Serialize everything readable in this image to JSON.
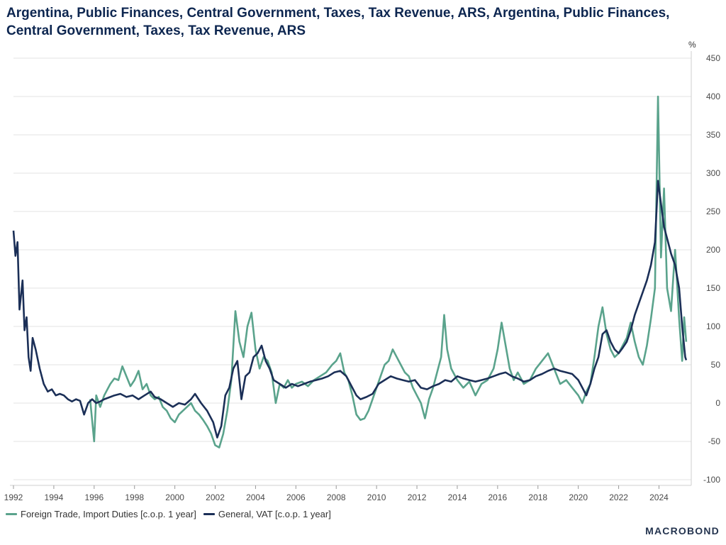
{
  "page": {
    "title": "Argentina, Public Finances, Central Government, Taxes, Tax Revenue, ARS, Argentina, Public Finances, Central Government, Taxes, Tax Revenue, ARS",
    "brand": "MACROBOND"
  },
  "colors": {
    "import_duties": "#5aa38c",
    "vat": "#1b2f57",
    "grid": "#e3e3e3",
    "axis": "#cfcfcf"
  },
  "chart_data": {
    "type": "line",
    "title": "Argentina, Public Finances, Central Government, Taxes, Tax Revenue, ARS, Argentina, Public Finances, Central Government, Taxes, Tax Revenue, ARS",
    "ylabel": "%",
    "xlim": [
      1992,
      2025.6
    ],
    "ylim": [
      -100,
      450
    ],
    "x_ticks": [
      "1992",
      "1994",
      "1996",
      "1998",
      "2000",
      "2002",
      "2004",
      "2006",
      "2008",
      "2010",
      "2012",
      "2014",
      "2016",
      "2018",
      "2020",
      "2022",
      "2024"
    ],
    "y_ticks": [
      "450",
      "400",
      "350",
      "300",
      "250",
      "200",
      "150",
      "100",
      "50",
      "0",
      "-50",
      "-100"
    ],
    "grid": true,
    "legend_position": "bottom-left",
    "series": [
      {
        "name": "Foreign Trade, Import Duties [c.o.p. 1 year]",
        "color": "#5aa38c",
        "points": [
          [
            1995.8,
            5
          ],
          [
            1996.0,
            -50
          ],
          [
            1996.1,
            10
          ],
          [
            1996.3,
            -5
          ],
          [
            1996.5,
            10
          ],
          [
            1996.8,
            25
          ],
          [
            1997.0,
            32
          ],
          [
            1997.2,
            30
          ],
          [
            1997.4,
            48
          ],
          [
            1997.6,
            35
          ],
          [
            1997.8,
            22
          ],
          [
            1998.0,
            30
          ],
          [
            1998.2,
            42
          ],
          [
            1998.4,
            18
          ],
          [
            1998.6,
            25
          ],
          [
            1998.8,
            10
          ],
          [
            1999.0,
            5
          ],
          [
            1999.2,
            8
          ],
          [
            1999.4,
            -5
          ],
          [
            1999.6,
            -10
          ],
          [
            1999.8,
            -20
          ],
          [
            2000.0,
            -25
          ],
          [
            2000.2,
            -15
          ],
          [
            2000.4,
            -10
          ],
          [
            2000.6,
            -5
          ],
          [
            2000.8,
            0
          ],
          [
            2001.0,
            -10
          ],
          [
            2001.2,
            -15
          ],
          [
            2001.4,
            -22
          ],
          [
            2001.6,
            -30
          ],
          [
            2001.8,
            -40
          ],
          [
            2002.0,
            -55
          ],
          [
            2002.2,
            -58
          ],
          [
            2002.4,
            -40
          ],
          [
            2002.6,
            -10
          ],
          [
            2002.8,
            30
          ],
          [
            2003.0,
            120
          ],
          [
            2003.2,
            80
          ],
          [
            2003.4,
            60
          ],
          [
            2003.6,
            100
          ],
          [
            2003.8,
            118
          ],
          [
            2004.0,
            70
          ],
          [
            2004.2,
            45
          ],
          [
            2004.4,
            60
          ],
          [
            2004.6,
            55
          ],
          [
            2004.8,
            40
          ],
          [
            2005.0,
            0
          ],
          [
            2005.2,
            25
          ],
          [
            2005.4,
            20
          ],
          [
            2005.6,
            30
          ],
          [
            2005.8,
            20
          ],
          [
            2006.0,
            25
          ],
          [
            2006.3,
            28
          ],
          [
            2006.6,
            22
          ],
          [
            2006.9,
            30
          ],
          [
            2007.2,
            35
          ],
          [
            2007.5,
            40
          ],
          [
            2007.8,
            50
          ],
          [
            2008.0,
            55
          ],
          [
            2008.2,
            65
          ],
          [
            2008.4,
            40
          ],
          [
            2008.6,
            30
          ],
          [
            2008.8,
            10
          ],
          [
            2009.0,
            -15
          ],
          [
            2009.2,
            -22
          ],
          [
            2009.4,
            -20
          ],
          [
            2009.6,
            -10
          ],
          [
            2009.8,
            5
          ],
          [
            2010.0,
            20
          ],
          [
            2010.2,
            35
          ],
          [
            2010.4,
            50
          ],
          [
            2010.6,
            55
          ],
          [
            2010.8,
            70
          ],
          [
            2011.0,
            60
          ],
          [
            2011.2,
            50
          ],
          [
            2011.4,
            40
          ],
          [
            2011.6,
            35
          ],
          [
            2011.8,
            20
          ],
          [
            2012.0,
            10
          ],
          [
            2012.2,
            0
          ],
          [
            2012.4,
            -20
          ],
          [
            2012.6,
            5
          ],
          [
            2012.8,
            20
          ],
          [
            2013.0,
            40
          ],
          [
            2013.2,
            60
          ],
          [
            2013.35,
            115
          ],
          [
            2013.5,
            70
          ],
          [
            2013.7,
            45
          ],
          [
            2014.0,
            30
          ],
          [
            2014.3,
            20
          ],
          [
            2014.6,
            28
          ],
          [
            2014.9,
            10
          ],
          [
            2015.2,
            25
          ],
          [
            2015.5,
            30
          ],
          [
            2015.8,
            45
          ],
          [
            2016.0,
            70
          ],
          [
            2016.2,
            105
          ],
          [
            2016.4,
            75
          ],
          [
            2016.6,
            45
          ],
          [
            2016.8,
            30
          ],
          [
            2017.0,
            40
          ],
          [
            2017.3,
            25
          ],
          [
            2017.6,
            30
          ],
          [
            2017.9,
            45
          ],
          [
            2018.2,
            55
          ],
          [
            2018.5,
            65
          ],
          [
            2018.8,
            45
          ],
          [
            2019.1,
            25
          ],
          [
            2019.4,
            30
          ],
          [
            2019.7,
            20
          ],
          [
            2020.0,
            10
          ],
          [
            2020.2,
            0
          ],
          [
            2020.4,
            15
          ],
          [
            2020.6,
            25
          ],
          [
            2020.8,
            60
          ],
          [
            2021.0,
            100
          ],
          [
            2021.2,
            125
          ],
          [
            2021.4,
            90
          ],
          [
            2021.6,
            70
          ],
          [
            2021.8,
            60
          ],
          [
            2022.0,
            65
          ],
          [
            2022.2,
            75
          ],
          [
            2022.4,
            85
          ],
          [
            2022.6,
            105
          ],
          [
            2022.8,
            80
          ],
          [
            2023.0,
            60
          ],
          [
            2023.2,
            50
          ],
          [
            2023.4,
            75
          ],
          [
            2023.6,
            110
          ],
          [
            2023.8,
            150
          ],
          [
            2023.95,
            400
          ],
          [
            2024.1,
            190
          ],
          [
            2024.25,
            280
          ],
          [
            2024.4,
            150
          ],
          [
            2024.6,
            120
          ],
          [
            2024.8,
            200
          ],
          [
            2025.0,
            110
          ],
          [
            2025.15,
            55
          ],
          [
            2025.25,
            112
          ],
          [
            2025.35,
            80
          ]
        ]
      },
      {
        "name": "General, VAT [c.o.p. 1 year]",
        "color": "#1b2f57",
        "points": [
          [
            1992.0,
            225
          ],
          [
            1992.1,
            192
          ],
          [
            1992.2,
            210
          ],
          [
            1992.3,
            122
          ],
          [
            1992.45,
            160
          ],
          [
            1992.55,
            95
          ],
          [
            1992.65,
            112
          ],
          [
            1992.75,
            60
          ],
          [
            1992.85,
            42
          ],
          [
            1992.95,
            85
          ],
          [
            1993.1,
            70
          ],
          [
            1993.3,
            45
          ],
          [
            1993.5,
            25
          ],
          [
            1993.7,
            15
          ],
          [
            1993.9,
            18
          ],
          [
            1994.1,
            10
          ],
          [
            1994.3,
            12
          ],
          [
            1994.5,
            10
          ],
          [
            1994.7,
            5
          ],
          [
            1994.9,
            2
          ],
          [
            1995.1,
            5
          ],
          [
            1995.3,
            3
          ],
          [
            1995.5,
            -15
          ],
          [
            1995.7,
            0
          ],
          [
            1995.9,
            5
          ],
          [
            1996.1,
            0
          ],
          [
            1996.3,
            2
          ],
          [
            1996.5,
            5
          ],
          [
            1996.8,
            8
          ],
          [
            1997.0,
            10
          ],
          [
            1997.3,
            12
          ],
          [
            1997.6,
            8
          ],
          [
            1997.9,
            10
          ],
          [
            1998.2,
            5
          ],
          [
            1998.5,
            10
          ],
          [
            1998.8,
            15
          ],
          [
            1999.0,
            8
          ],
          [
            1999.3,
            5
          ],
          [
            1999.6,
            0
          ],
          [
            1999.9,
            -5
          ],
          [
            2000.2,
            0
          ],
          [
            2000.5,
            -2
          ],
          [
            2000.8,
            5
          ],
          [
            2001.0,
            12
          ],
          [
            2001.3,
            0
          ],
          [
            2001.6,
            -10
          ],
          [
            2001.9,
            -25
          ],
          [
            2002.1,
            -45
          ],
          [
            2002.3,
            -30
          ],
          [
            2002.5,
            10
          ],
          [
            2002.7,
            20
          ],
          [
            2002.9,
            45
          ],
          [
            2003.1,
            55
          ],
          [
            2003.3,
            5
          ],
          [
            2003.5,
            35
          ],
          [
            2003.7,
            40
          ],
          [
            2003.9,
            60
          ],
          [
            2004.1,
            65
          ],
          [
            2004.3,
            75
          ],
          [
            2004.5,
            55
          ],
          [
            2004.7,
            45
          ],
          [
            2004.9,
            30
          ],
          [
            2005.2,
            25
          ],
          [
            2005.5,
            20
          ],
          [
            2005.8,
            25
          ],
          [
            2006.1,
            22
          ],
          [
            2006.4,
            25
          ],
          [
            2006.7,
            28
          ],
          [
            2007.0,
            30
          ],
          [
            2007.3,
            32
          ],
          [
            2007.6,
            35
          ],
          [
            2007.9,
            40
          ],
          [
            2008.2,
            42
          ],
          [
            2008.5,
            35
          ],
          [
            2008.8,
            20
          ],
          [
            2009.0,
            10
          ],
          [
            2009.2,
            5
          ],
          [
            2009.5,
            8
          ],
          [
            2009.8,
            12
          ],
          [
            2010.1,
            25
          ],
          [
            2010.4,
            30
          ],
          [
            2010.7,
            35
          ],
          [
            2011.0,
            32
          ],
          [
            2011.3,
            30
          ],
          [
            2011.6,
            28
          ],
          [
            2011.9,
            30
          ],
          [
            2012.2,
            20
          ],
          [
            2012.5,
            18
          ],
          [
            2012.8,
            22
          ],
          [
            2013.1,
            25
          ],
          [
            2013.4,
            30
          ],
          [
            2013.7,
            28
          ],
          [
            2014.0,
            35
          ],
          [
            2014.3,
            32
          ],
          [
            2014.6,
            30
          ],
          [
            2014.9,
            28
          ],
          [
            2015.2,
            30
          ],
          [
            2015.5,
            32
          ],
          [
            2015.8,
            35
          ],
          [
            2016.1,
            38
          ],
          [
            2016.4,
            40
          ],
          [
            2016.7,
            35
          ],
          [
            2017.0,
            32
          ],
          [
            2017.3,
            28
          ],
          [
            2017.6,
            30
          ],
          [
            2017.9,
            35
          ],
          [
            2018.2,
            38
          ],
          [
            2018.5,
            42
          ],
          [
            2018.8,
            45
          ],
          [
            2019.1,
            42
          ],
          [
            2019.4,
            40
          ],
          [
            2019.7,
            38
          ],
          [
            2020.0,
            30
          ],
          [
            2020.2,
            20
          ],
          [
            2020.4,
            10
          ],
          [
            2020.6,
            25
          ],
          [
            2020.8,
            45
          ],
          [
            2021.0,
            60
          ],
          [
            2021.2,
            90
          ],
          [
            2021.4,
            95
          ],
          [
            2021.6,
            80
          ],
          [
            2021.8,
            70
          ],
          [
            2022.0,
            65
          ],
          [
            2022.2,
            72
          ],
          [
            2022.4,
            80
          ],
          [
            2022.6,
            95
          ],
          [
            2022.8,
            115
          ],
          [
            2023.0,
            130
          ],
          [
            2023.2,
            145
          ],
          [
            2023.4,
            160
          ],
          [
            2023.6,
            180
          ],
          [
            2023.8,
            210
          ],
          [
            2023.95,
            290
          ],
          [
            2024.1,
            260
          ],
          [
            2024.25,
            230
          ],
          [
            2024.4,
            215
          ],
          [
            2024.6,
            195
          ],
          [
            2024.8,
            180
          ],
          [
            2025.0,
            150
          ],
          [
            2025.15,
            100
          ],
          [
            2025.3,
            60
          ],
          [
            2025.35,
            56
          ]
        ]
      }
    ]
  }
}
